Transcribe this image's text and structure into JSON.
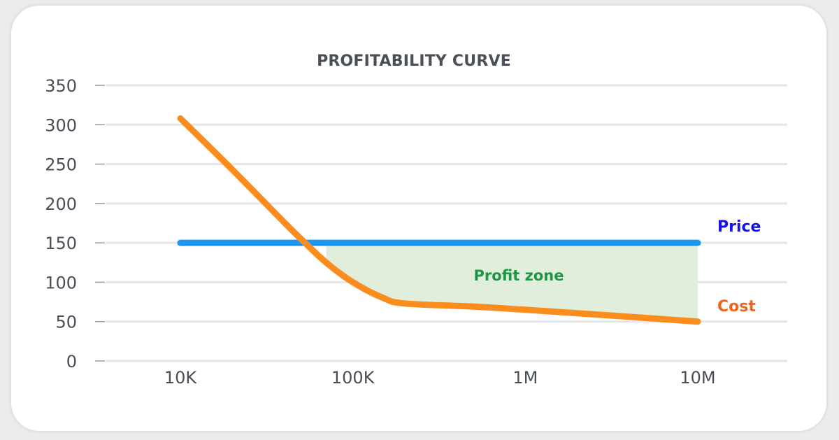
{
  "chart_data": {
    "type": "line",
    "title": "PROFITABILITY CURVE",
    "xlabel": "",
    "ylabel": "",
    "x_scale": "log",
    "x_ticks": [
      {
        "value": 10000,
        "label": "10K"
      },
      {
        "value": 100000,
        "label": "100K"
      },
      {
        "value": 1000000,
        "label": "1M"
      },
      {
        "value": 10000000,
        "label": "10M"
      }
    ],
    "y_ticks": [
      0,
      50,
      100,
      150,
      200,
      250,
      300,
      350
    ],
    "ylim": [
      0,
      350
    ],
    "grid": true,
    "series": [
      {
        "name": "Price",
        "color": "#1e96f0",
        "label_color": "#1414e6",
        "x": [
          10000,
          10000000
        ],
        "values": [
          150,
          150
        ]
      },
      {
        "name": "Cost",
        "color": "#fb8c1e",
        "label_color": "#f0641e",
        "x": [
          10000,
          20000,
          40000,
          50000,
          70000,
          100000,
          150000,
          200000,
          500000,
          1000000,
          3000000,
          10000000
        ],
        "values": [
          308,
          243,
          176,
          155,
          125,
          100,
          80,
          73,
          69,
          65,
          58,
          50
        ]
      }
    ],
    "annotations": [
      {
        "text": "Profit zone",
        "color": "#1e9646",
        "fill": "#e1eedb"
      }
    ]
  }
}
